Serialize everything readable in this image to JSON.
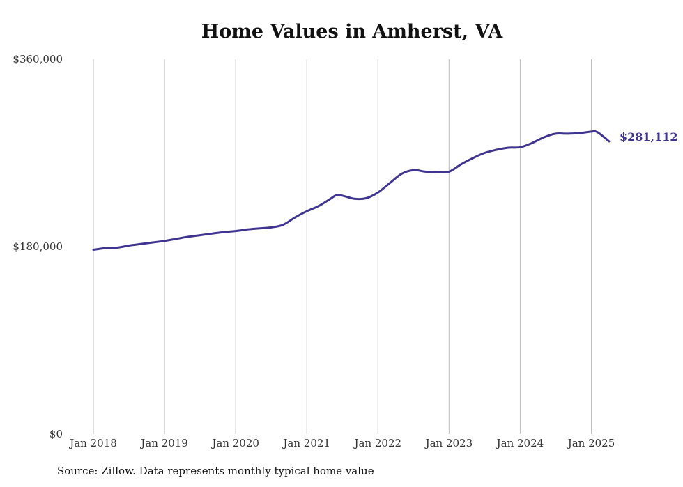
{
  "chart_data": {
    "type": "line",
    "title": "Home Values in Amherst, VA",
    "source": "Source: Zillow. Data represents monthly typical home value",
    "ylim": [
      0,
      360000
    ],
    "yticks": [
      "$0",
      "$180,000",
      "$360,000"
    ],
    "ytick_values": [
      0,
      180000,
      360000
    ],
    "xticks": [
      "Jan 2018",
      "Jan 2019",
      "Jan 2020",
      "Jan 2021",
      "Jan 2022",
      "Jan 2023",
      "Jan 2024",
      "Jan 2025"
    ],
    "xtick_values": [
      "2018-01",
      "2019-01",
      "2020-01",
      "2021-01",
      "2022-01",
      "2023-01",
      "2024-01",
      "2025-01"
    ],
    "grid": "vertical",
    "line_color": "#3f3590",
    "end_label": "$281,112",
    "series": [
      {
        "x": [
          "2018-01",
          "2018-03",
          "2018-05",
          "2018-07",
          "2018-09",
          "2018-11",
          "2019-01",
          "2019-03",
          "2019-05",
          "2019-07",
          "2019-09",
          "2019-11",
          "2020-01",
          "2020-03",
          "2020-05",
          "2020-07",
          "2020-09",
          "2020-11",
          "2021-01",
          "2021-03",
          "2021-05",
          "2021-06",
          "2021-07",
          "2021-09",
          "2021-11",
          "2022-01",
          "2022-03",
          "2022-05",
          "2022-07",
          "2022-09",
          "2022-11",
          "2023-01",
          "2023-03",
          "2023-05",
          "2023-07",
          "2023-09",
          "2023-11",
          "2024-01",
          "2024-03",
          "2024-05",
          "2024-07",
          "2024-09",
          "2024-11",
          "2025-01",
          "2025-02",
          "2025-04"
        ],
        "values": [
          177000,
          178500,
          179000,
          181000,
          182500,
          184000,
          185500,
          187500,
          189500,
          191000,
          192500,
          194000,
          195000,
          196500,
          197500,
          198500,
          201000,
          208000,
          214000,
          219000,
          226000,
          229500,
          229000,
          226000,
          226500,
          232000,
          241000,
          250000,
          253500,
          252000,
          251500,
          252000,
          259000,
          265000,
          270000,
          273000,
          275000,
          275500,
          279500,
          285000,
          288500,
          288500,
          289000,
          290500,
          290000,
          281112
        ]
      }
    ]
  }
}
